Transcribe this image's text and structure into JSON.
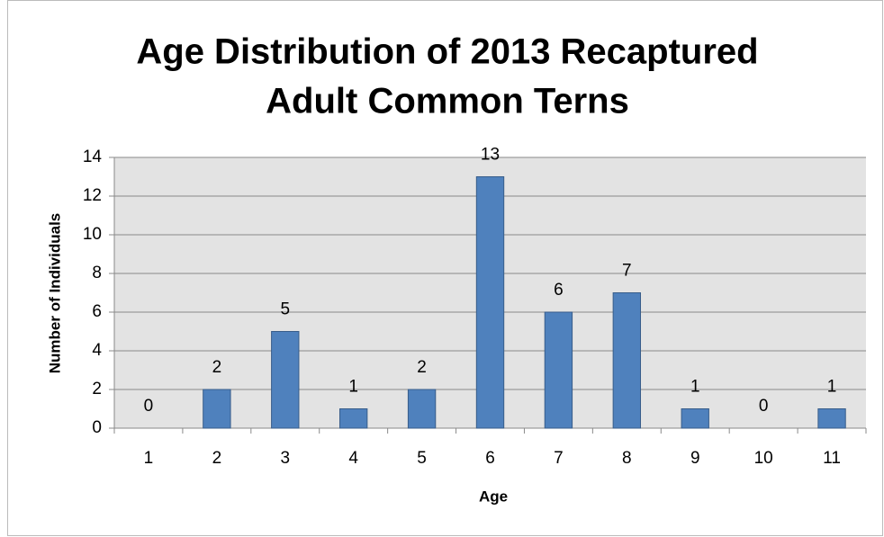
{
  "chart_data": {
    "type": "bar",
    "title": [
      "Age Distribution of 2013 Recaptured",
      "Adult Common Terns"
    ],
    "x_label": "Age",
    "y_label": "Number of Individuals",
    "categories": [
      "1",
      "2",
      "3",
      "4",
      "5",
      "6",
      "7",
      "8",
      "9",
      "10",
      "11"
    ],
    "values": [
      0,
      2,
      5,
      1,
      2,
      13,
      6,
      7,
      1,
      0,
      1
    ],
    "color": "#4f81bd",
    "ylim": [
      0,
      14
    ],
    "yticks": [
      0,
      2,
      4,
      6,
      8,
      10,
      12,
      14
    ],
    "grid": true
  }
}
